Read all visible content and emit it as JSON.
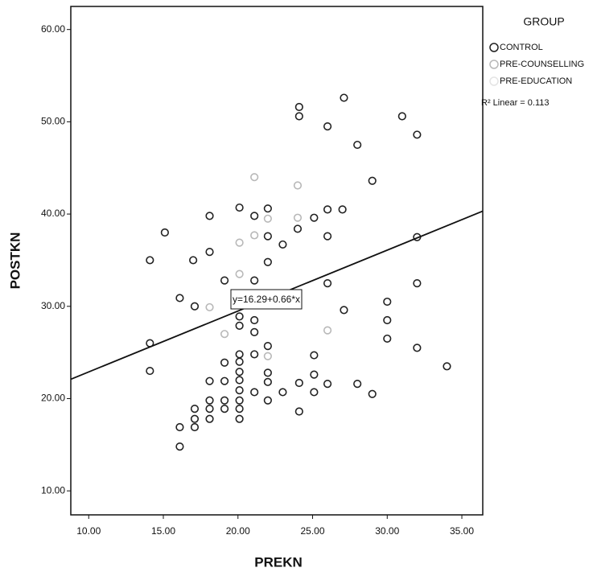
{
  "chart_data": {
    "type": "scatter",
    "x_label": "PREKN",
    "y_label": "POSTKN",
    "legend_title": "GROUP",
    "legend_position": "right",
    "xlim": [
      8.8,
      36.4
    ],
    "ylim": [
      7.4,
      62.5
    ],
    "xticks": [
      {
        "value": 10,
        "label": "10.00"
      },
      {
        "value": 15,
        "label": "15.00"
      },
      {
        "value": 20,
        "label": "20.00"
      },
      {
        "value": 25,
        "label": "25.00"
      },
      {
        "value": 30,
        "label": "30.00"
      },
      {
        "value": 35,
        "label": "35.00"
      }
    ],
    "yticks": [
      {
        "value": 10,
        "label": "10.00"
      },
      {
        "value": 20,
        "label": "20.00"
      },
      {
        "value": 30,
        "label": "30.00"
      },
      {
        "value": 40,
        "label": "40.00"
      },
      {
        "value": 50,
        "label": "50.00"
      },
      {
        "value": 60,
        "label": "60.00"
      }
    ],
    "fit_line": {
      "intercept": 16.29,
      "slope": 0.66,
      "label": "y=16.29+0.66*x",
      "r2_label": "R² Linear = 0.113",
      "color": "#111111"
    },
    "series": [
      {
        "name": "CONTROL",
        "color": "#222222",
        "x": [
          24.1,
          24.1,
          27.1,
          26.0,
          28.0,
          31.0,
          32.0,
          29.0,
          14.1,
          15.1,
          17.0,
          18.1,
          18.1,
          20.1,
          21.1,
          22.0,
          22.0,
          22.0,
          23.0,
          24.0,
          25.1,
          26.0,
          27.0,
          26.0,
          32.0,
          19.1,
          21.1,
          26.0,
          16.1,
          17.1,
          27.1,
          30.0,
          30.0,
          30.0,
          32.0,
          14.1,
          14.1,
          22.0,
          25.1,
          32.0,
          34.0,
          20.1,
          20.1,
          20.1,
          20.1,
          20.1,
          20.1,
          20.1,
          20.1,
          19.1,
          19.1,
          19.1,
          19.1,
          18.1,
          18.1,
          18.1,
          18.1,
          17.1,
          17.1,
          17.1,
          16.1,
          16.1,
          21.1,
          21.1,
          22.0,
          22.0,
          22.0,
          23.0,
          24.1,
          24.1,
          25.1,
          25.1,
          26.0,
          28.0,
          29.0,
          21.1,
          21.1,
          20.1,
          20.1
        ],
        "values": [
          51.6,
          50.6,
          52.6,
          49.5,
          47.5,
          50.6,
          48.6,
          43.6,
          35.0,
          38.0,
          35.0,
          35.9,
          39.8,
          40.7,
          39.8,
          40.6,
          37.6,
          34.8,
          36.7,
          38.4,
          39.6,
          40.5,
          40.5,
          37.6,
          37.5,
          32.8,
          32.8,
          32.5,
          30.9,
          30.0,
          29.6,
          30.5,
          28.5,
          26.5,
          32.5,
          26.0,
          23.0,
          25.7,
          24.7,
          25.5,
          23.5,
          24.8,
          24.0,
          22.9,
          22.0,
          20.9,
          19.8,
          18.9,
          17.8,
          23.9,
          21.9,
          19.8,
          18.9,
          21.9,
          19.8,
          18.9,
          17.8,
          18.9,
          17.8,
          16.9,
          16.9,
          14.8,
          24.8,
          20.7,
          22.8,
          21.8,
          19.8,
          20.7,
          21.7,
          18.6,
          22.6,
          20.7,
          21.6,
          21.6,
          20.5,
          28.5,
          27.2,
          28.9,
          27.9
        ]
      },
      {
        "name": "PRE-COUNSELLING",
        "color": "#b8b8b8",
        "x": [
          20.1,
          21.1,
          22.0,
          24.0,
          22.0,
          26.0,
          20.1,
          18.1,
          19.1,
          24.0,
          21.1
        ],
        "values": [
          36.9,
          37.7,
          39.5,
          39.6,
          24.6,
          27.4,
          33.5,
          29.9,
          27.0,
          43.1,
          44.0
        ]
      },
      {
        "name": "PRE-EDUCATION",
        "color": "#e4e4e4",
        "x": [],
        "values": []
      }
    ]
  }
}
